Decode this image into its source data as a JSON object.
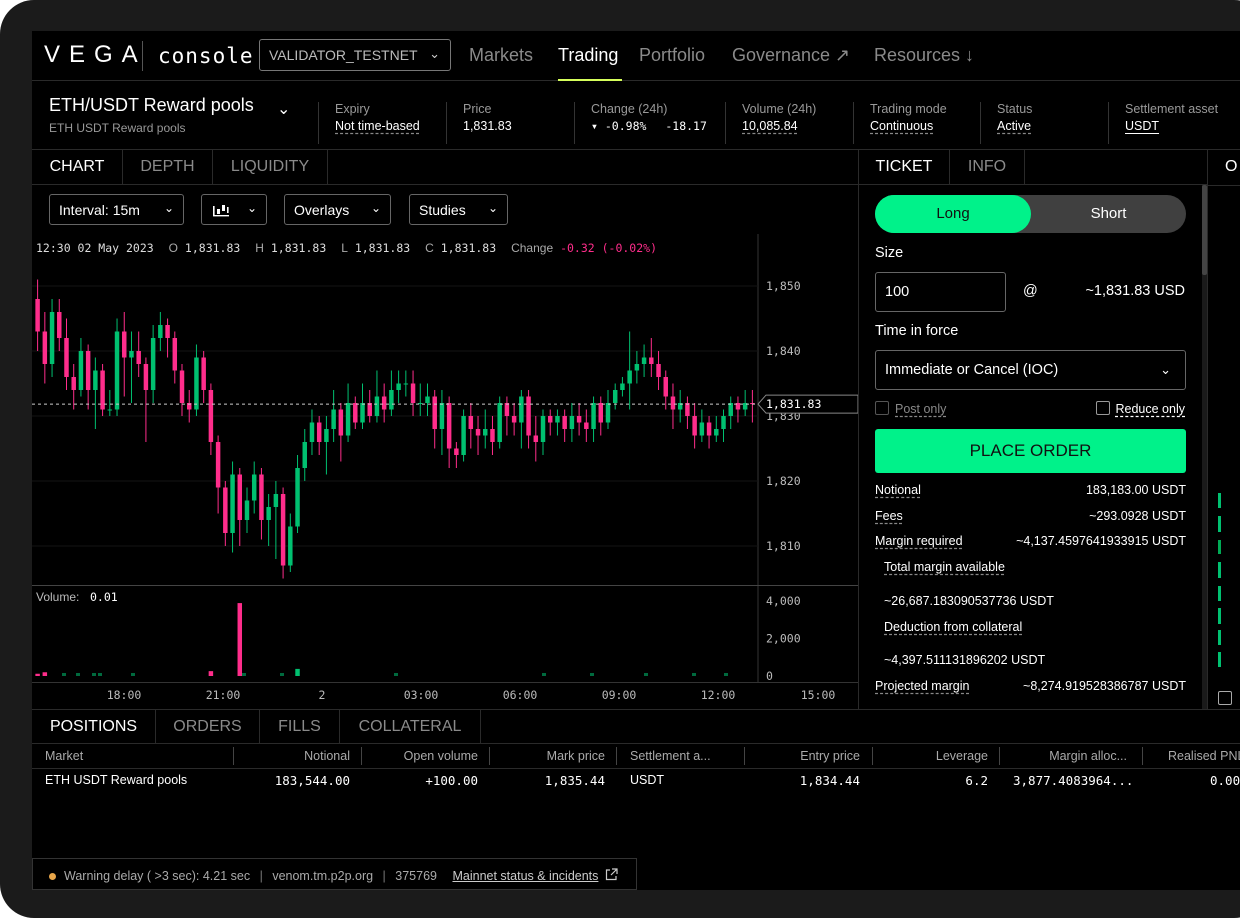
{
  "nav": {
    "logo": "VEGA",
    "product": "console",
    "network": "VALIDATOR_TESTNET",
    "items": [
      {
        "label": "Markets",
        "active": false
      },
      {
        "label": "Trading",
        "active": true
      },
      {
        "label": "Portfolio",
        "active": false
      },
      {
        "label": "Governance ↗",
        "active": false
      },
      {
        "label": "Resources ↓",
        "active": false
      }
    ]
  },
  "market": {
    "name": "ETH/USDT Reward pools",
    "subtitle": "ETH USDT Reward pools",
    "stats": {
      "expiry_label": "Expiry",
      "expiry": "Not time-based",
      "price_label": "Price",
      "price": "1,831.83",
      "change_label": "Change (24h)",
      "change_pct": "-0.98%",
      "change_abs": "-18.17",
      "volume_label": "Volume (24h)",
      "volume": "10,085.84",
      "mode_label": "Trading mode",
      "mode": "Continuous",
      "status_label": "Status",
      "status": "Active",
      "asset_label": "Settlement asset",
      "asset": "USDT"
    }
  },
  "chart_tabs": [
    "CHART",
    "DEPTH",
    "LIQUIDITY"
  ],
  "toolbar": {
    "interval": "Interval: 15m",
    "overlays": "Overlays",
    "studies": "Studies"
  },
  "ohlc": {
    "time": "12:30 02 May 2023",
    "o_label": "O",
    "o": "1,831.83",
    "h_label": "H",
    "h": "1,831.83",
    "l_label": "L",
    "l": "1,831.83",
    "c_label": "C",
    "c": "1,831.83",
    "change_label": "Change",
    "change": "-0.32 (-0.02%)"
  },
  "chart_data": {
    "type": "candlestick",
    "price_axis": {
      "ticks": [
        "1,850",
        "1,840",
        "1,830",
        "1,820",
        "1,810"
      ],
      "range": [
        1804,
        1858
      ]
    },
    "last_price": "1,831.83",
    "volume_axis": {
      "ticks": [
        "4,000",
        "2,000",
        "0"
      ],
      "range": [
        0,
        4600
      ]
    },
    "volume_label": "Volume:",
    "volume_value": "0.01",
    "x_ticks": [
      "18:00",
      "21:00",
      "2",
      "03:00",
      "06:00",
      "09:00",
      "12:00",
      "15:00"
    ],
    "candles": [
      [
        1848,
        1843,
        1851,
        1840
      ],
      [
        1843,
        1838,
        1846,
        1835
      ],
      [
        1838,
        1846,
        1848,
        1836
      ],
      [
        1846,
        1842,
        1848,
        1840
      ],
      [
        1842,
        1836,
        1845,
        1834
      ],
      [
        1836,
        1834,
        1838,
        1831
      ],
      [
        1834,
        1840,
        1842,
        1833
      ],
      [
        1840,
        1834,
        1841,
        1831
      ],
      [
        1834,
        1837,
        1839,
        1828
      ],
      [
        1837,
        1831,
        1838,
        1830
      ],
      [
        1831,
        1831,
        1834,
        1830
      ],
      [
        1831,
        1843,
        1845,
        1830
      ],
      [
        1843,
        1839,
        1846,
        1833
      ],
      [
        1839,
        1840,
        1843,
        1832
      ],
      [
        1840,
        1838,
        1843,
        1836
      ],
      [
        1838,
        1834,
        1839,
        1826
      ],
      [
        1834,
        1842,
        1844,
        1832
      ],
      [
        1842,
        1844,
        1846,
        1840
      ],
      [
        1844,
        1842,
        1845,
        1839
      ],
      [
        1842,
        1837,
        1843,
        1835
      ],
      [
        1837,
        1832,
        1838,
        1830
      ],
      [
        1832,
        1831,
        1834,
        1829
      ],
      [
        1831,
        1839,
        1841,
        1830
      ],
      [
        1839,
        1834,
        1840,
        1832
      ],
      [
        1834,
        1826,
        1835,
        1824
      ],
      [
        1826,
        1819,
        1827,
        1815
      ],
      [
        1819,
        1812,
        1820,
        1810
      ],
      [
        1812,
        1821,
        1823,
        1809
      ],
      [
        1821,
        1814,
        1822,
        1810
      ],
      [
        1814,
        1817,
        1819,
        1812
      ],
      [
        1817,
        1821,
        1823,
        1815
      ],
      [
        1821,
        1814,
        1822,
        1811
      ],
      [
        1814,
        1816,
        1818,
        1810
      ],
      [
        1816,
        1818,
        1820,
        1808
      ],
      [
        1818,
        1807,
        1819,
        1805
      ],
      [
        1807,
        1813,
        1815,
        1806
      ],
      [
        1813,
        1822,
        1824,
        1812
      ],
      [
        1822,
        1826,
        1828,
        1820
      ],
      [
        1826,
        1829,
        1831,
        1824
      ],
      [
        1829,
        1826,
        1830,
        1824
      ],
      [
        1826,
        1828,
        1830,
        1821
      ],
      [
        1828,
        1831,
        1834,
        1826
      ],
      [
        1831,
        1827,
        1832,
        1823
      ],
      [
        1827,
        1832,
        1835,
        1826
      ],
      [
        1832,
        1829,
        1833,
        1828
      ],
      [
        1829,
        1832,
        1835,
        1828
      ],
      [
        1832,
        1830,
        1834,
        1829
      ],
      [
        1830,
        1833,
        1837,
        1829
      ],
      [
        1833,
        1831,
        1835,
        1829
      ],
      [
        1831,
        1834,
        1837,
        1830
      ],
      [
        1834,
        1835,
        1837,
        1832
      ],
      [
        1835,
        1835,
        1837,
        1833
      ],
      [
        1835,
        1832,
        1837,
        1830
      ],
      [
        1832,
        1832,
        1835,
        1830
      ],
      [
        1832,
        1833,
        1835,
        1830
      ],
      [
        1833,
        1828,
        1834,
        1825
      ],
      [
        1828,
        1832,
        1834,
        1824
      ],
      [
        1832,
        1825,
        1833,
        1822
      ],
      [
        1825,
        1824,
        1826,
        1822
      ],
      [
        1824,
        1830,
        1831,
        1823
      ],
      [
        1830,
        1828,
        1832,
        1825
      ],
      [
        1828,
        1827,
        1830,
        1824
      ],
      [
        1827,
        1828,
        1831,
        1825
      ],
      [
        1828,
        1826,
        1830,
        1824
      ],
      [
        1826,
        1832,
        1833,
        1825
      ],
      [
        1832,
        1830,
        1833,
        1827
      ],
      [
        1830,
        1829,
        1832,
        1827
      ],
      [
        1829,
        1833,
        1834,
        1825
      ],
      [
        1833,
        1827,
        1834,
        1825
      ],
      [
        1827,
        1826,
        1830,
        1823
      ],
      [
        1826,
        1830,
        1831,
        1824
      ],
      [
        1830,
        1829,
        1831,
        1827
      ],
      [
        1829,
        1830,
        1831,
        1827
      ],
      [
        1830,
        1828,
        1831,
        1826
      ],
      [
        1828,
        1830,
        1832,
        1826
      ],
      [
        1830,
        1829,
        1832,
        1827
      ],
      [
        1829,
        1828,
        1831,
        1826
      ],
      [
        1828,
        1832,
        1833,
        1826
      ],
      [
        1832,
        1829,
        1833,
        1827
      ],
      [
        1829,
        1832,
        1834,
        1828
      ],
      [
        1832,
        1834,
        1835,
        1831
      ],
      [
        1834,
        1835,
        1836,
        1833
      ],
      [
        1835,
        1837,
        1843,
        1831
      ],
      [
        1837,
        1838,
        1840,
        1835
      ],
      [
        1838,
        1839,
        1841,
        1836
      ],
      [
        1839,
        1838,
        1842,
        1836
      ],
      [
        1838,
        1836,
        1840,
        1834
      ],
      [
        1836,
        1833,
        1837,
        1831
      ],
      [
        1833,
        1831,
        1835,
        1828
      ],
      [
        1831,
        1832,
        1834,
        1829
      ],
      [
        1832,
        1830,
        1833,
        1828
      ],
      [
        1830,
        1827,
        1832,
        1825
      ],
      [
        1827,
        1829,
        1831,
        1826
      ],
      [
        1829,
        1827,
        1830,
        1825
      ],
      [
        1827,
        1828,
        1830,
        1826
      ],
      [
        1828,
        1830,
        1831,
        1826
      ],
      [
        1830,
        1832,
        1833,
        1828
      ],
      [
        1832,
        1831,
        1833,
        1829
      ],
      [
        1831,
        1832,
        1834,
        1830
      ],
      [
        1832,
        1831.83,
        1834,
        1829
      ]
    ],
    "volumes": [
      120,
      200,
      0,
      0,
      0,
      0,
      0,
      0,
      0,
      0,
      0,
      0,
      0,
      0,
      0,
      0,
      0,
      0,
      0,
      0,
      0,
      0,
      0,
      0,
      260,
      0,
      0,
      0,
      3900,
      0,
      0,
      0,
      0,
      0,
      0,
      0,
      380,
      0,
      0,
      0,
      0,
      0,
      0,
      0,
      0,
      0,
      0,
      0,
      0,
      0,
      0,
      0,
      0,
      0,
      0,
      0,
      0,
      0,
      0,
      0,
      0,
      0,
      0,
      0,
      0,
      0,
      0,
      0,
      0,
      0,
      0,
      0,
      0,
      0,
      0,
      0,
      0,
      0,
      0,
      0,
      0,
      0,
      0,
      0,
      0,
      0,
      0,
      0,
      0,
      0,
      0,
      0,
      0,
      0,
      0,
      0,
      0,
      0,
      0,
      0
    ]
  },
  "ticket": {
    "tabs": [
      "TICKET",
      "INFO"
    ],
    "long": "Long",
    "short": "Short",
    "size_label": "Size",
    "size_value": "100",
    "at": "@",
    "approx_price": "~1,831.83 USD",
    "tif_label": "Time in force",
    "tif_value": "Immediate or Cancel (IOC)",
    "post_only": "Post only",
    "reduce_only": "Reduce only",
    "place_order": "PLACE ORDER",
    "notional_label": "Notional",
    "notional": "183,183.00 USDT",
    "fees_label": "Fees",
    "fees": "~293.0928 USDT",
    "margin_label": "Margin required",
    "margin": "~4,137.4597641933915 USDT",
    "total_margin_label": "Total margin available",
    "total_margin": "~26,687.183090537736 USDT",
    "deduction_label": "Deduction from collateral",
    "deduction": "~4,397.511131896202 USDT",
    "projected_label": "Projected margin",
    "projected": "~8,274.919528386787 USDT"
  },
  "right_panel": {
    "tab_fragment": "O"
  },
  "bottom": {
    "tabs": [
      "POSITIONS",
      "ORDERS",
      "FILLS",
      "COLLATERAL"
    ],
    "columns": [
      "Market",
      "Notional",
      "Open volume",
      "Mark price",
      "Settlement a...",
      "Entry price",
      "Leverage",
      "Margin alloc...",
      "Realised PNL"
    ],
    "row": {
      "market": "ETH USDT Reward pools",
      "notional": "183,544.00",
      "open_volume": "+100.00",
      "mark_price": "1,835.44",
      "settlement": "USDT",
      "entry_price": "1,834.44",
      "leverage": "6.2",
      "margin": "3,877.4083964...",
      "realised": "0.00"
    }
  },
  "status": {
    "warning": "Warning delay ( >3 sec): 4.21 sec",
    "node": "venom.tm.p2p.org",
    "block": "375769",
    "link": "Mainnet status & incidents"
  },
  "colors": {
    "accent_green": "#00f28a",
    "down_pink": "#ff2d8b",
    "up_green": "#00c070",
    "nav_underline": "#d6ff5c"
  }
}
